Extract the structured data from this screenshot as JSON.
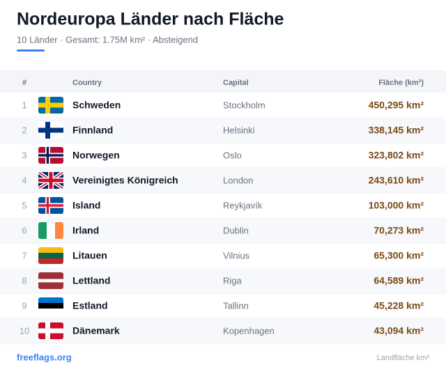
{
  "header": {
    "title": "Nordeuropa Länder nach Fläche",
    "subtitle": "10 Länder · Gesamt: 1.75M km² · Absteigend"
  },
  "table": {
    "columns": [
      "#",
      "Country",
      "Capital",
      "Fläche (km²)"
    ],
    "rows": [
      [
        1,
        "Schweden",
        "Stockholm",
        "450,295 km²"
      ],
      [
        2,
        "Finnland",
        "Helsinki",
        "338,145 km²"
      ],
      [
        3,
        "Norwegen",
        "Oslo",
        "323,802 km²"
      ],
      [
        4,
        "Vereinigtes Königreich",
        "London",
        "243,610 km²"
      ],
      [
        5,
        "Island",
        "Reykjavík",
        "103,000 km²"
      ],
      [
        6,
        "Irland",
        "Dublin",
        "70,273 km²"
      ],
      [
        7,
        "Litauen",
        "Vilnius",
        "65,300 km²"
      ],
      [
        8,
        "Lettland",
        "Riga",
        "64,589 km²"
      ],
      [
        9,
        "Estland",
        "Tallinn",
        "45,228 km²"
      ],
      [
        10,
        "Dänemark",
        "Kopenhagen",
        "43,094 km²"
      ]
    ]
  },
  "footer": {
    "source": "freeflags.org",
    "note": "Landfläche km²"
  }
}
